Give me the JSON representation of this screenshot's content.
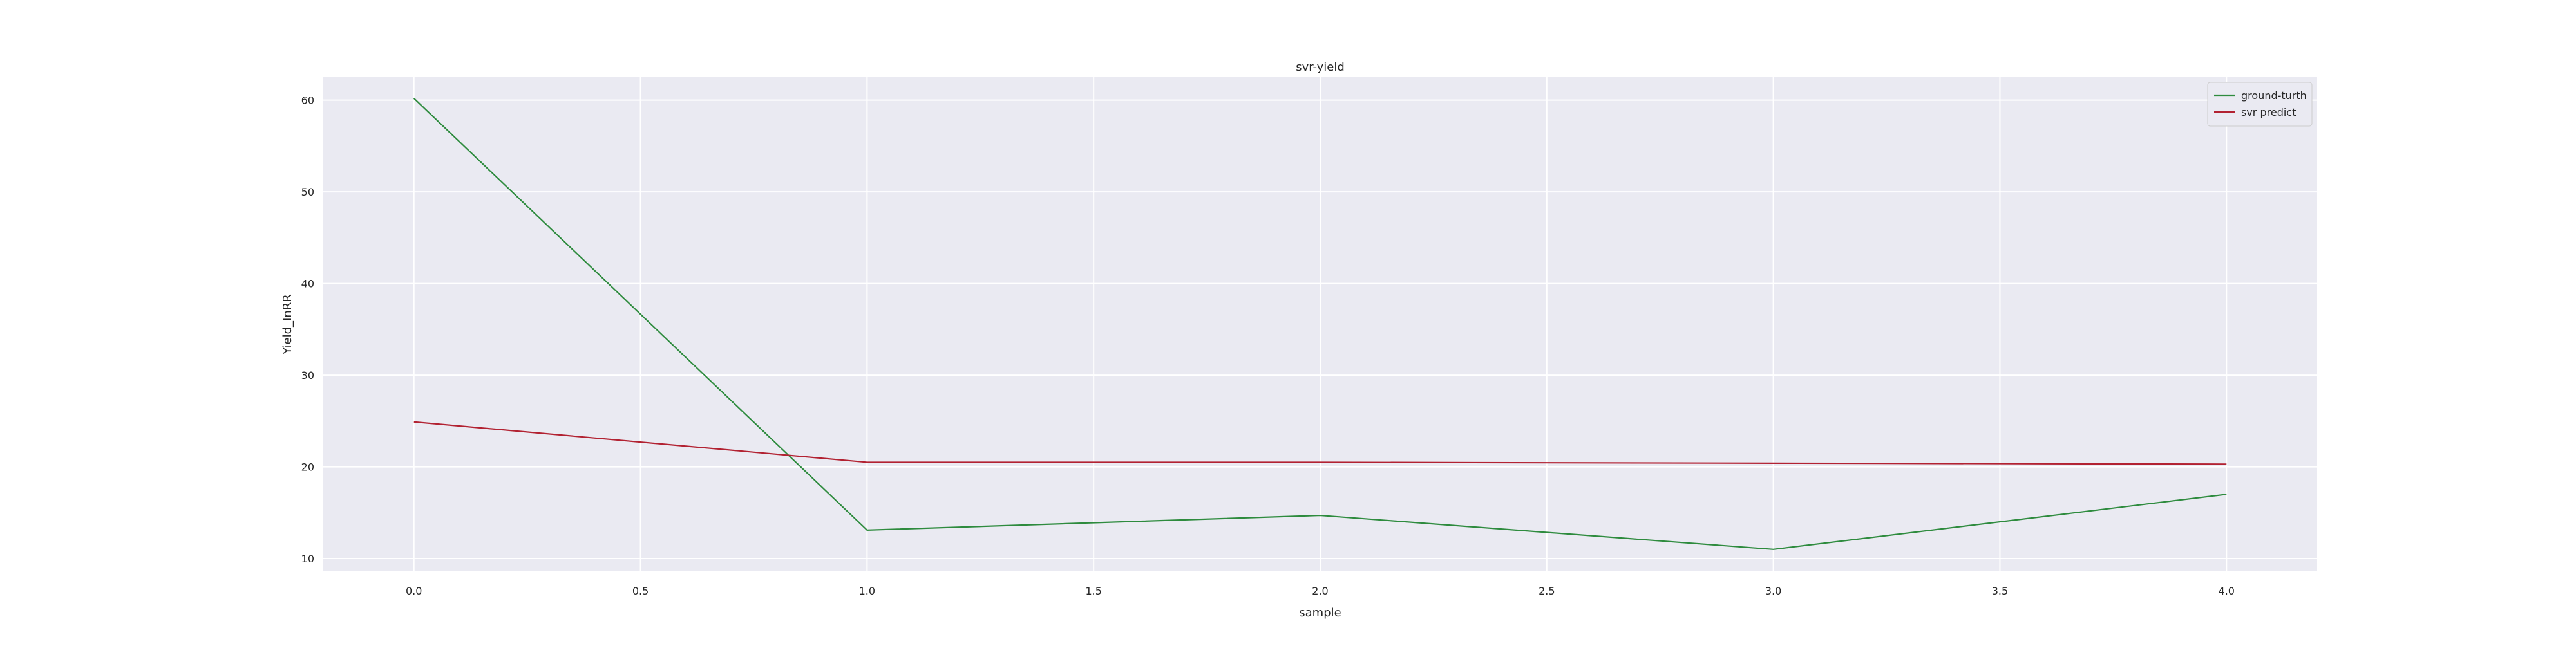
{
  "chart_data": {
    "type": "line",
    "title": "svr-yield",
    "xlabel": "sample",
    "ylabel": "Yield_InRR",
    "x": [
      0,
      1,
      2,
      3,
      4
    ],
    "xlim": [
      -0.2,
      4.2
    ],
    "ylim": [
      8.6,
      62.5
    ],
    "xticks": [
      0.0,
      0.5,
      1.0,
      1.5,
      2.0,
      2.5,
      3.0,
      3.5,
      4.0
    ],
    "xtick_labels": [
      "0.0",
      "0.5",
      "1.0",
      "1.5",
      "2.0",
      "2.5",
      "3.0",
      "3.5",
      "4.0"
    ],
    "yticks": [
      10,
      20,
      30,
      40,
      50,
      60
    ],
    "ytick_labels": [
      "10",
      "20",
      "30",
      "40",
      "50",
      "60"
    ],
    "grid": true,
    "legend_position": "top-right",
    "background_color": "#eaeaf2",
    "grid_color": "#ffffff",
    "series": [
      {
        "name": "ground-turth",
        "color": "#2e8b3e",
        "values": [
          60.2,
          13.1,
          14.7,
          11.0,
          17.0
        ]
      },
      {
        "name": "svr predict",
        "color": "#b22232",
        "values": [
          24.9,
          20.5,
          20.5,
          20.4,
          20.3
        ]
      }
    ]
  }
}
